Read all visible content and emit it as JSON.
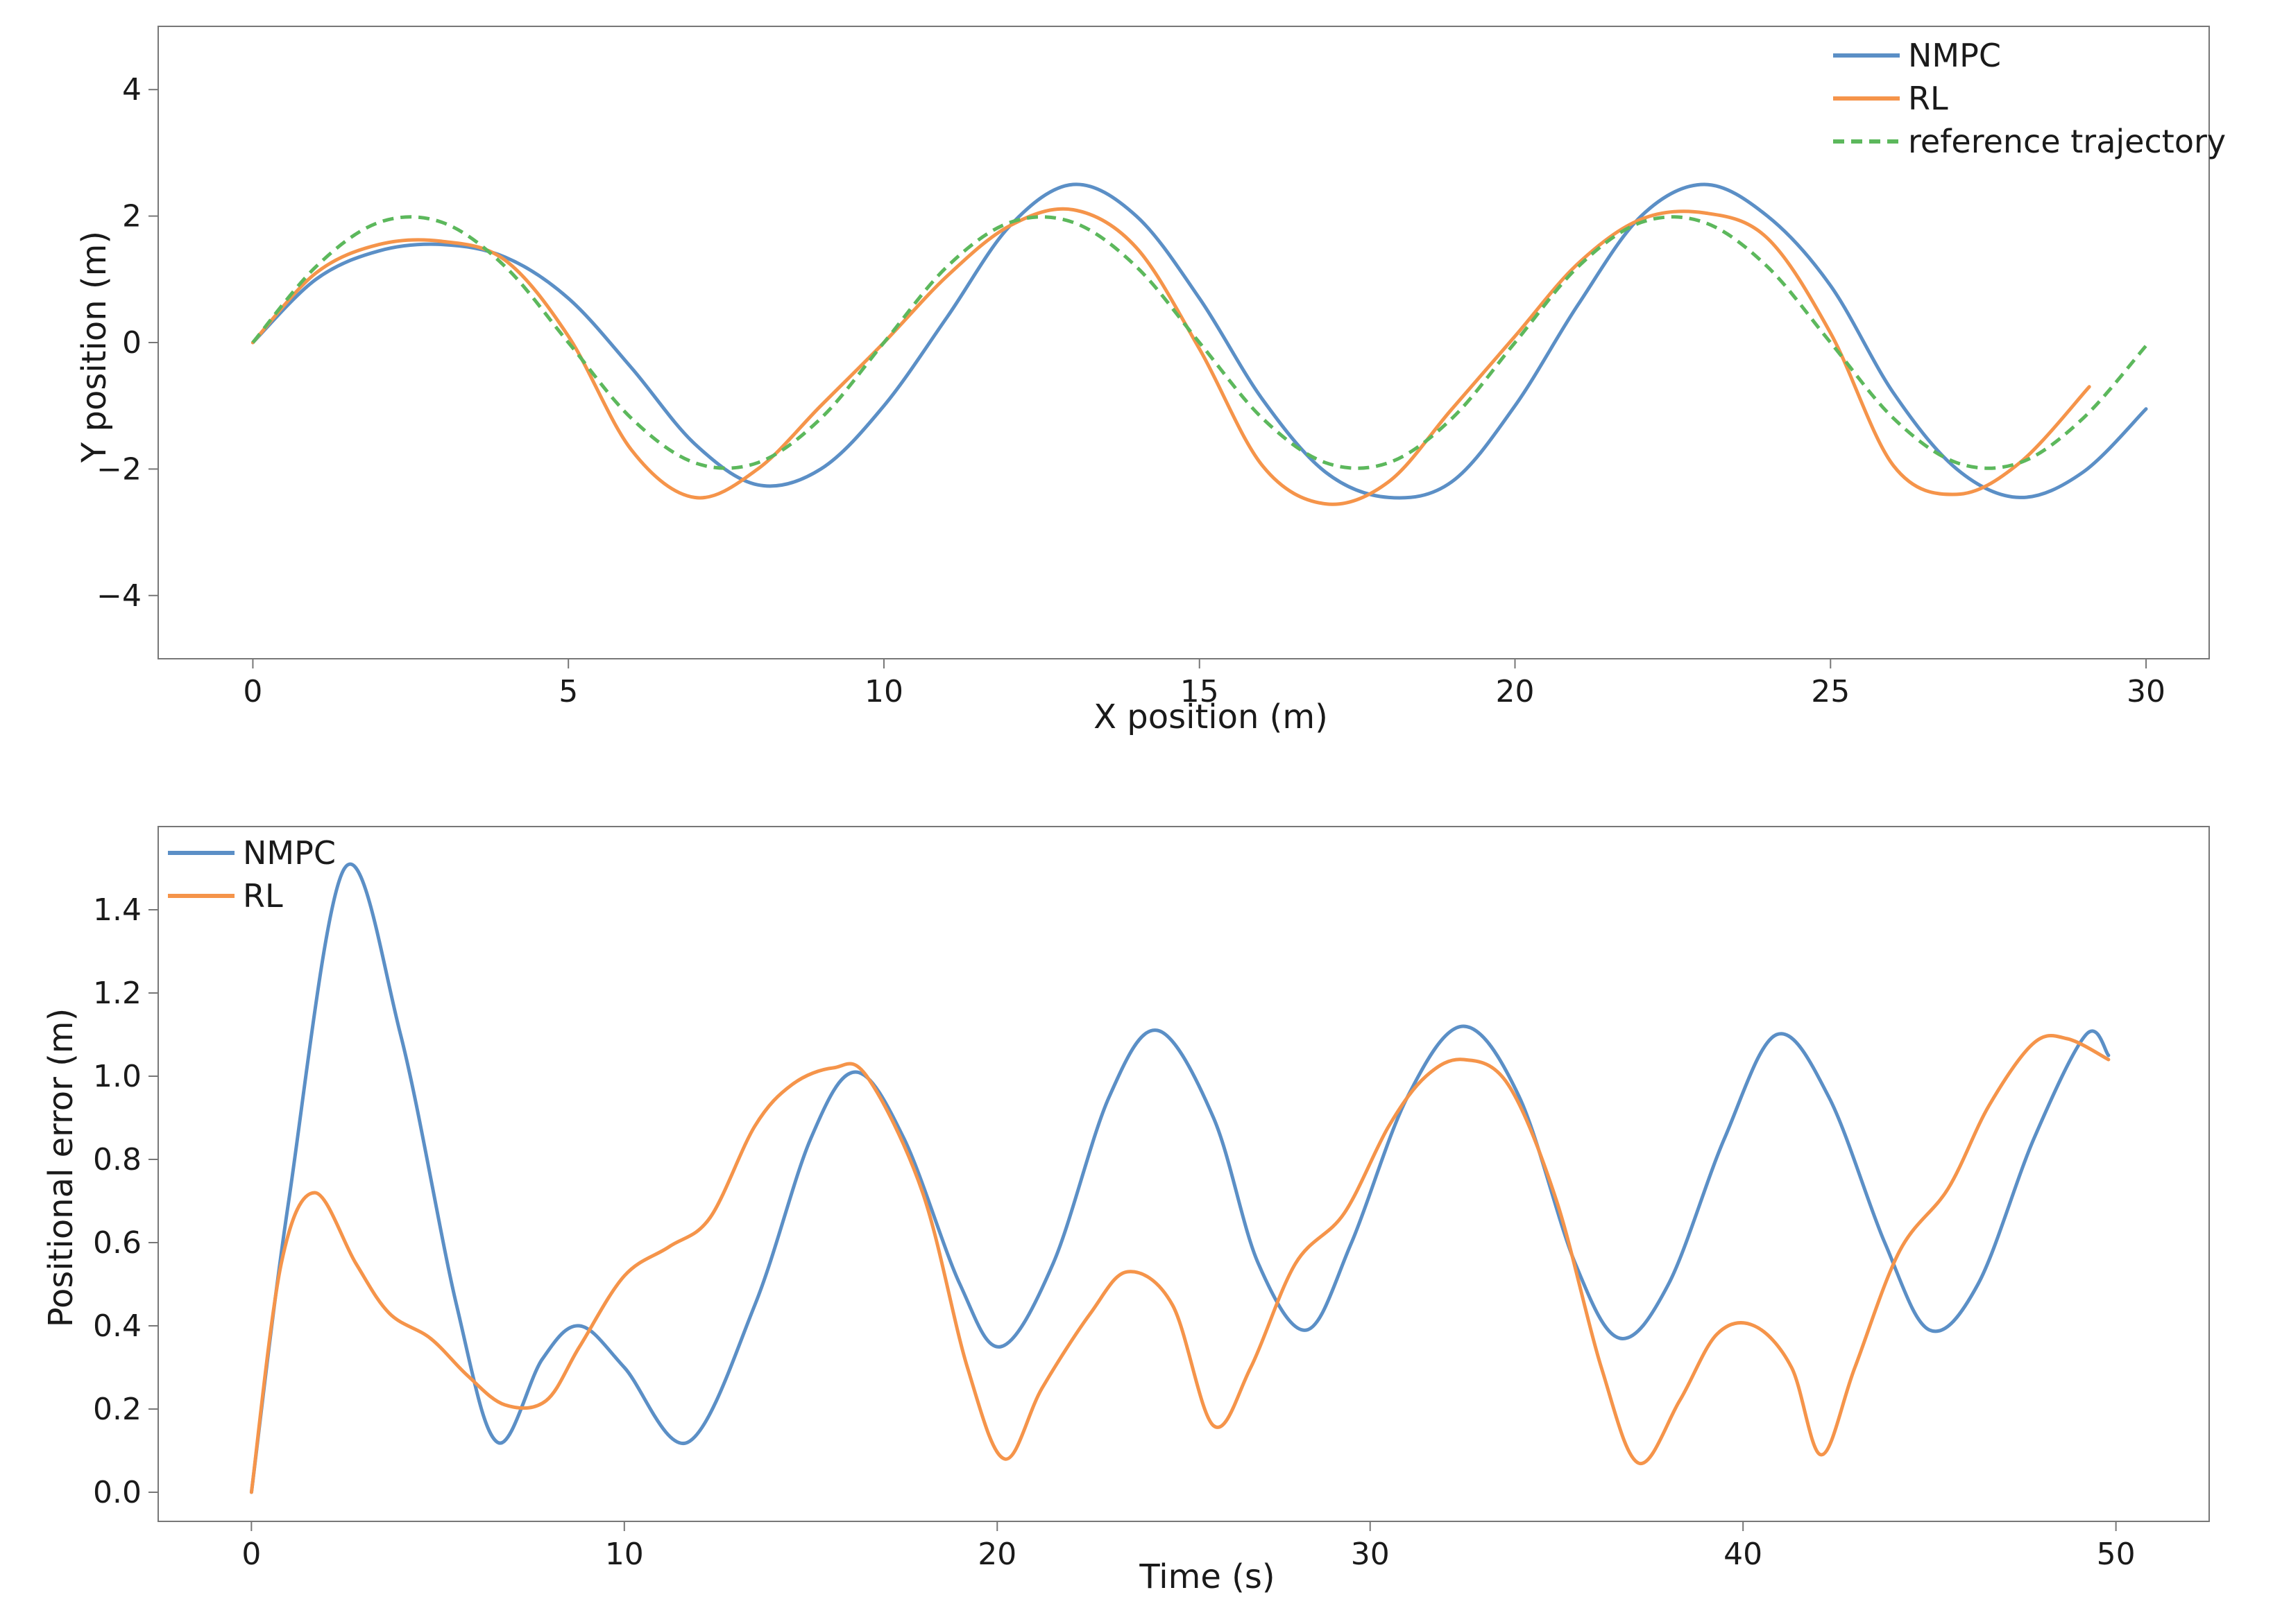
{
  "chart_data": [
    {
      "type": "line",
      "title": "",
      "xlabel": "X position (m)",
      "ylabel": "Y position (m)",
      "xlim": [
        -1.5,
        31.0
      ],
      "ylim": [
        -5.0,
        5.0
      ],
      "xticks": [
        0,
        5,
        10,
        15,
        20,
        25,
        30
      ],
      "yticks": [
        -4,
        -2,
        0,
        2,
        4
      ],
      "xtick_labels": [
        "0",
        "5",
        "10",
        "15",
        "20",
        "25",
        "30"
      ],
      "ytick_labels": [
        "−4",
        "−2",
        "0",
        "2",
        "4"
      ],
      "grid": false,
      "legend_position": "top-right",
      "series": [
        {
          "name": "NMPC",
          "color": "#5b8fc6",
          "dash": "solid",
          "x": [
            0,
            1,
            2,
            3,
            4,
            5,
            6,
            7,
            8,
            9,
            10,
            11,
            12,
            13,
            14,
            15,
            16,
            17,
            18,
            19,
            20,
            21,
            22,
            23,
            24,
            25,
            26,
            27,
            28,
            29,
            30
          ],
          "y": [
            0,
            1.0,
            1.45,
            1.55,
            1.35,
            0.7,
            -0.4,
            -1.6,
            -2.25,
            -2.0,
            -1.0,
            0.4,
            1.85,
            2.5,
            2.0,
            0.7,
            -0.9,
            -2.05,
            -2.45,
            -2.2,
            -1.0,
            0.6,
            2.0,
            2.5,
            2.0,
            0.9,
            -0.8,
            -2.0,
            -2.45,
            -2.05,
            -1.05
          ]
        },
        {
          "name": "RL",
          "color": "#f5944a",
          "dash": "solid",
          "x": [
            0,
            1,
            2,
            3,
            4,
            5,
            6,
            7,
            8,
            9,
            10,
            11,
            12,
            13,
            14,
            15,
            16,
            17,
            18,
            19,
            20,
            21,
            22,
            23,
            24,
            25,
            26,
            27,
            28,
            29.1
          ],
          "y": [
            0,
            1.1,
            1.55,
            1.6,
            1.3,
            0.1,
            -1.7,
            -2.45,
            -2.0,
            -1.0,
            0.0,
            1.05,
            1.85,
            2.1,
            1.5,
            -0.1,
            -1.95,
            -2.55,
            -2.2,
            -1.05,
            0.1,
            1.25,
            1.95,
            2.05,
            1.65,
            0.15,
            -1.95,
            -2.4,
            -1.9,
            -0.7
          ]
        },
        {
          "name": "reference trajectory",
          "color": "#5cb85c",
          "dash": "dashed",
          "x": [
            0,
            1,
            2,
            3,
            4,
            5,
            6,
            7,
            8,
            9,
            10,
            11,
            12,
            13,
            14,
            15,
            16,
            17,
            18,
            19,
            20,
            21,
            22,
            23,
            24,
            25,
            26,
            27,
            28,
            29,
            30
          ],
          "y": [
            0,
            1.2,
            1.9,
            1.9,
            1.2,
            0.0,
            -1.2,
            -1.9,
            -1.9,
            -1.2,
            0.0,
            1.2,
            1.9,
            1.9,
            1.2,
            0.0,
            -1.2,
            -1.9,
            -1.9,
            -1.2,
            0.0,
            1.2,
            1.9,
            1.9,
            1.2,
            0.0,
            -1.2,
            -1.9,
            -1.9,
            -1.2,
            -0.05
          ]
        }
      ]
    },
    {
      "type": "line",
      "title": "",
      "xlabel": "Time (s)",
      "ylabel": "Positional error (m)",
      "xlim": [
        -2.5,
        52.5
      ],
      "ylim": [
        -0.07,
        1.6
      ],
      "xticks": [
        0,
        10,
        20,
        30,
        40,
        50
      ],
      "yticks": [
        0.0,
        0.2,
        0.4,
        0.6,
        0.8,
        1.0,
        1.2,
        1.4
      ],
      "xtick_labels": [
        "0",
        "10",
        "20",
        "30",
        "40",
        "50"
      ],
      "ytick_labels": [
        "0.0",
        "0.2",
        "0.4",
        "0.6",
        "0.8",
        "1.0",
        "1.2",
        "1.4"
      ],
      "grid": false,
      "legend_position": "top-left",
      "series": [
        {
          "name": "NMPC",
          "color": "#5b8fc6",
          "dash": "solid",
          "x": [
            0,
            1,
            2.5,
            4,
            5.5,
            6.6,
            7.8,
            8.8,
            10,
            11.7,
            13.5,
            15,
            16.2,
            17.5,
            19,
            20.1,
            21.5,
            23,
            24.3,
            25.8,
            27,
            28.3,
            29.5,
            31,
            32.5,
            34,
            35.5,
            36.7,
            38,
            39.5,
            40.9,
            42.3,
            43.8,
            45,
            46.3,
            47.8,
            49.2,
            49.8
          ],
          "y": [
            0,
            0.7,
            1.5,
            1.1,
            0.45,
            0.12,
            0.32,
            0.4,
            0.3,
            0.12,
            0.45,
            0.85,
            1.01,
            0.85,
            0.5,
            0.35,
            0.55,
            0.95,
            1.11,
            0.9,
            0.55,
            0.39,
            0.6,
            0.95,
            1.12,
            0.95,
            0.55,
            0.37,
            0.5,
            0.85,
            1.1,
            0.95,
            0.6,
            0.39,
            0.5,
            0.85,
            1.1,
            1.05
          ]
        },
        {
          "name": "RL",
          "color": "#f5944a",
          "dash": "solid",
          "x": [
            0,
            0.8,
            1.7,
            2.8,
            3.7,
            4.8,
            5.8,
            6.8,
            7.9,
            8.8,
            10,
            11.2,
            12.3,
            13.5,
            14.5,
            15.6,
            16.5,
            18,
            19.2,
            20.2,
            21.2,
            22.5,
            23.5,
            24.7,
            25.8,
            26.8,
            28,
            29.3,
            30.5,
            31.5,
            32.5,
            33.7,
            35,
            36.2,
            37.2,
            38.3,
            39.3,
            40.3,
            41.3,
            42.1,
            43,
            44.2,
            45.5,
            46.6,
            47.8,
            48.7,
            49.8
          ],
          "y": [
            0,
            0.55,
            0.72,
            0.55,
            0.43,
            0.37,
            0.28,
            0.21,
            0.22,
            0.35,
            0.52,
            0.59,
            0.66,
            0.88,
            0.98,
            1.02,
            1.0,
            0.72,
            0.3,
            0.08,
            0.25,
            0.43,
            0.53,
            0.45,
            0.16,
            0.3,
            0.55,
            0.67,
            0.88,
            1.0,
            1.04,
            0.98,
            0.7,
            0.3,
            0.07,
            0.22,
            0.38,
            0.4,
            0.3,
            0.09,
            0.3,
            0.58,
            0.73,
            0.93,
            1.08,
            1.09,
            1.04
          ]
        }
      ]
    }
  ]
}
